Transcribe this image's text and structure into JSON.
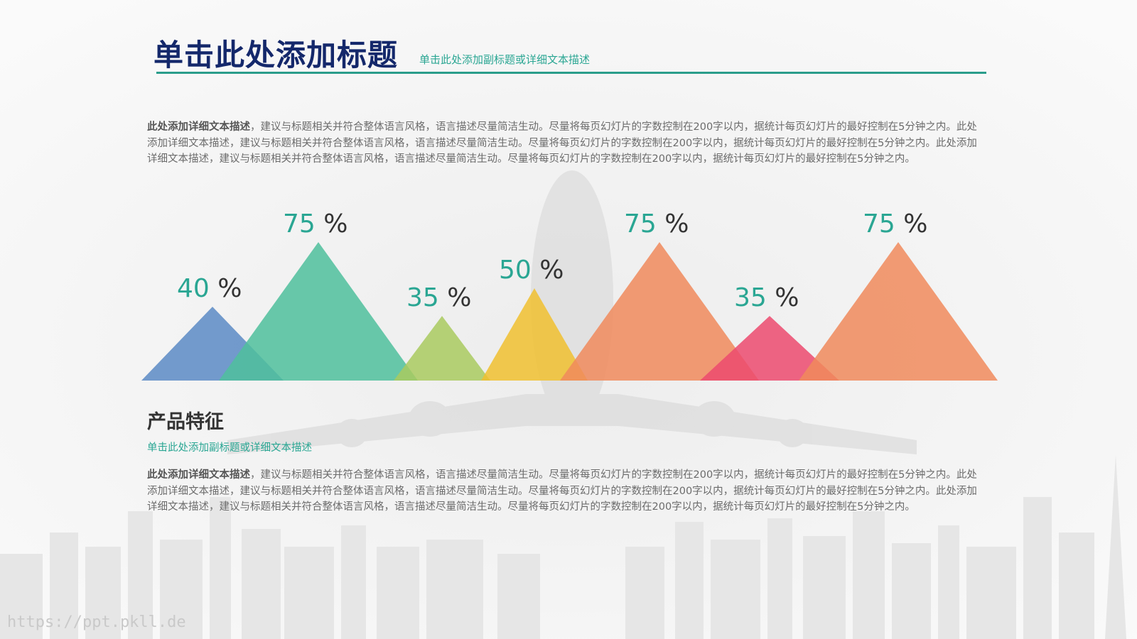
{
  "header": {
    "title": "单击此处添加标题",
    "subtitle": "单击此处添加副标题或详细文本描述"
  },
  "intro": {
    "bold": "此处添加详细文本描述",
    "text": "，建议与标题相关并符合整体语言风格，语言描述尽量简洁生动。尽量将每页幻灯片的字数控制在200字以内，据统计每页幻灯片的最好控制在5分钟之内。此处添加详细文本描述，建议与标题相关并符合整体语言风格，语言描述尽量简洁生动。尽量将每页幻灯片的字数控制在200字以内，据统计每页幻灯片的最好控制在5分钟之内。此处添加详细文本描述，建议与标题相关并符合整体语言风格，语言描述尽量简洁生动。尽量将每页幻灯片的字数控制在200字以内，据统计每页幻灯片的最好控制在5分钟之内。"
  },
  "features": {
    "title": "产品特征",
    "subtitle": "单击此处添加副标题或详细文本描述",
    "bold": "此处添加详细文本描述",
    "text": "，建议与标题相关并符合整体语言风格，语言描述尽量简洁生动。尽量将每页幻灯片的字数控制在200字以内，据统计每页幻灯片的最好控制在5分钟之内。此处添加详细文本描述，建议与标题相关并符合整体语言风格，语言描述尽量简洁生动。尽量将每页幻灯片的字数控制在200字以内，据统计每页幻灯片的最好控制在5分钟之内。此处添加详细文本描述，建议与标题相关并符合整体语言风格，语言描述尽量简洁生动。尽量将每页幻灯片的字数控制在200字以内，据统计每页幻灯片的最好控制在5分钟之内。"
  },
  "watermark": "https://ppt.pkll.de",
  "colors": {
    "title": "#14286b",
    "accent": "#2aa693",
    "value_label": "#2aa693"
  },
  "chart_data": {
    "type": "bar",
    "shape": "triangle",
    "title": "",
    "xlabel": "",
    "ylabel": "",
    "ylim": [
      0,
      100
    ],
    "grid": false,
    "legend": "none",
    "unit": "%",
    "values": [
      40,
      75,
      35,
      50,
      75,
      35,
      75
    ],
    "colors": [
      "#5b8ac4",
      "#4fbf9c",
      "#a9ca5f",
      "#f0bf2f",
      "#f08a5c",
      "#ec4a6e",
      "#f08a5c"
    ]
  }
}
